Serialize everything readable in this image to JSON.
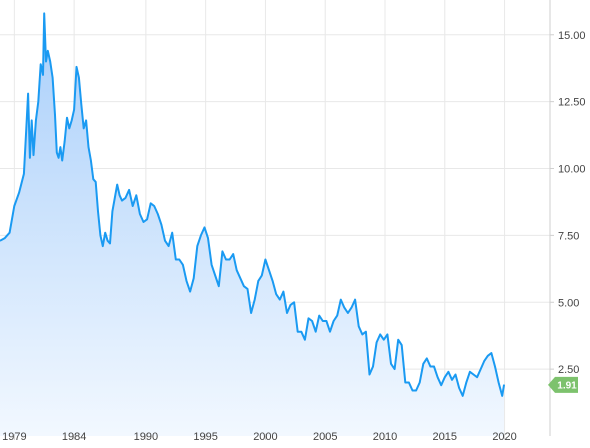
{
  "chart_data": {
    "type": "area",
    "title": "",
    "xlabel": "",
    "ylabel": "",
    "xlim": [
      1977.8,
      2023.8
    ],
    "ylim": [
      0,
      16.3
    ],
    "grid": true,
    "x_ticks": [
      {
        "value": 1979,
        "label": "1979"
      },
      {
        "value": 1984,
        "label": "1984"
      },
      {
        "value": 1990,
        "label": "1990"
      },
      {
        "value": 1995,
        "label": "1995"
      },
      {
        "value": 2000,
        "label": "2000"
      },
      {
        "value": 2005,
        "label": "2005"
      },
      {
        "value": 2010,
        "label": "2010"
      },
      {
        "value": 2015,
        "label": "2015"
      },
      {
        "value": 2020,
        "label": "2020"
      }
    ],
    "y_ticks": [
      {
        "value": 2.5,
        "label": "2.50"
      },
      {
        "value": 5.0,
        "label": "5.00"
      },
      {
        "value": 7.5,
        "label": "7.50"
      },
      {
        "value": 10.0,
        "label": "10.00"
      },
      {
        "value": 12.5,
        "label": "12.50"
      },
      {
        "value": 15.0,
        "label": "15.00"
      }
    ],
    "series": [
      {
        "x": [
          1977.8,
          1978.2,
          1978.6,
          1979.0,
          1979.4,
          1979.8,
          1980.0,
          1980.15,
          1980.3,
          1980.45,
          1980.6,
          1980.8,
          1981.0,
          1981.2,
          1981.4,
          1981.5,
          1981.65,
          1981.8,
          1982.0,
          1982.2,
          1982.4,
          1982.55,
          1982.7,
          1982.85,
          1983.0,
          1983.2,
          1983.4,
          1983.6,
          1983.8,
          1984.0,
          1984.2,
          1984.4,
          1984.6,
          1984.8,
          1985.0,
          1985.2,
          1985.4,
          1985.6,
          1985.8,
          1986.0,
          1986.2,
          1986.4,
          1986.6,
          1986.8,
          1987.0,
          1987.2,
          1987.4,
          1987.6,
          1987.8,
          1988.0,
          1988.3,
          1988.6,
          1988.9,
          1989.2,
          1989.5,
          1989.8,
          1990.1,
          1990.4,
          1990.7,
          1991.0,
          1991.3,
          1991.6,
          1991.9,
          1992.2,
          1992.5,
          1992.8,
          1993.1,
          1993.4,
          1993.7,
          1994.0,
          1994.3,
          1994.6,
          1994.9,
          1995.2,
          1995.5,
          1995.8,
          1996.1,
          1996.4,
          1996.7,
          1997.0,
          1997.3,
          1997.6,
          1997.9,
          1998.2,
          1998.5,
          1998.8,
          1999.1,
          1999.4,
          1999.7,
          2000.0,
          2000.3,
          2000.6,
          2000.9,
          2001.2,
          2001.5,
          2001.8,
          2002.1,
          2002.4,
          2002.7,
          2003.0,
          2003.3,
          2003.6,
          2003.9,
          2004.2,
          2004.5,
          2004.8,
          2005.1,
          2005.4,
          2005.7,
          2006.0,
          2006.3,
          2006.6,
          2006.9,
          2007.2,
          2007.5,
          2007.8,
          2008.1,
          2008.4,
          2008.7,
          2009.0,
          2009.3,
          2009.6,
          2009.9,
          2010.2,
          2010.5,
          2010.8,
          2011.1,
          2011.4,
          2011.7,
          2012.0,
          2012.3,
          2012.6,
          2012.9,
          2013.2,
          2013.5,
          2013.8,
          2014.1,
          2014.4,
          2014.7,
          2015.0,
          2015.3,
          2015.6,
          2015.9,
          2016.2,
          2016.5,
          2016.8,
          2017.1,
          2017.4,
          2017.7,
          2018.0,
          2018.3,
          2018.6,
          2018.9,
          2019.2,
          2019.5,
          2019.8,
          2019.95
        ],
        "values": [
          7.3,
          7.4,
          7.6,
          8.6,
          9.1,
          9.8,
          11.5,
          12.8,
          10.4,
          11.8,
          10.5,
          11.8,
          12.5,
          13.9,
          13.5,
          15.8,
          14.0,
          14.4,
          14.0,
          13.4,
          12.0,
          10.6,
          10.4,
          10.8,
          10.3,
          11.0,
          11.9,
          11.5,
          11.8,
          12.2,
          13.8,
          13.4,
          12.4,
          11.5,
          11.8,
          10.8,
          10.3,
          9.6,
          9.5,
          8.4,
          7.5,
          7.1,
          7.6,
          7.3,
          7.2,
          8.4,
          8.9,
          9.4,
          9.0,
          8.8,
          8.9,
          9.2,
          8.6,
          9.0,
          8.3,
          8.0,
          8.1,
          8.7,
          8.6,
          8.3,
          7.9,
          7.3,
          7.1,
          7.6,
          6.6,
          6.6,
          6.4,
          5.8,
          5.4,
          5.9,
          7.1,
          7.5,
          7.8,
          7.4,
          6.4,
          6.0,
          5.6,
          6.9,
          6.6,
          6.6,
          6.8,
          6.2,
          5.9,
          5.6,
          5.5,
          4.6,
          5.1,
          5.8,
          6.0,
          6.6,
          6.2,
          5.8,
          5.3,
          5.1,
          5.4,
          4.6,
          4.9,
          5.0,
          3.9,
          3.9,
          3.6,
          4.4,
          4.3,
          3.9,
          4.5,
          4.3,
          4.3,
          3.9,
          4.3,
          4.5,
          5.1,
          4.8,
          4.6,
          4.8,
          5.1,
          4.1,
          3.8,
          3.9,
          2.3,
          2.6,
          3.5,
          3.8,
          3.6,
          3.8,
          2.7,
          2.5,
          3.6,
          3.4,
          2.0,
          2.0,
          1.7,
          1.7,
          2.0,
          2.7,
          2.9,
          2.6,
          2.6,
          2.2,
          1.9,
          2.2,
          2.4,
          2.1,
          2.3,
          1.8,
          1.5,
          2.0,
          2.4,
          2.3,
          2.2,
          2.5,
          2.8,
          3.0,
          3.1,
          2.6,
          2.0,
          1.5,
          1.91
        ]
      }
    ],
    "last_value": {
      "x": 2019.95,
      "y": 1.91,
      "label": "1.91"
    },
    "line_color": "#1a9af2",
    "fill_top_color": "#a9cffa",
    "fill_bottom_color": "#f2f8ff",
    "badge_color": "#7dc26d"
  }
}
